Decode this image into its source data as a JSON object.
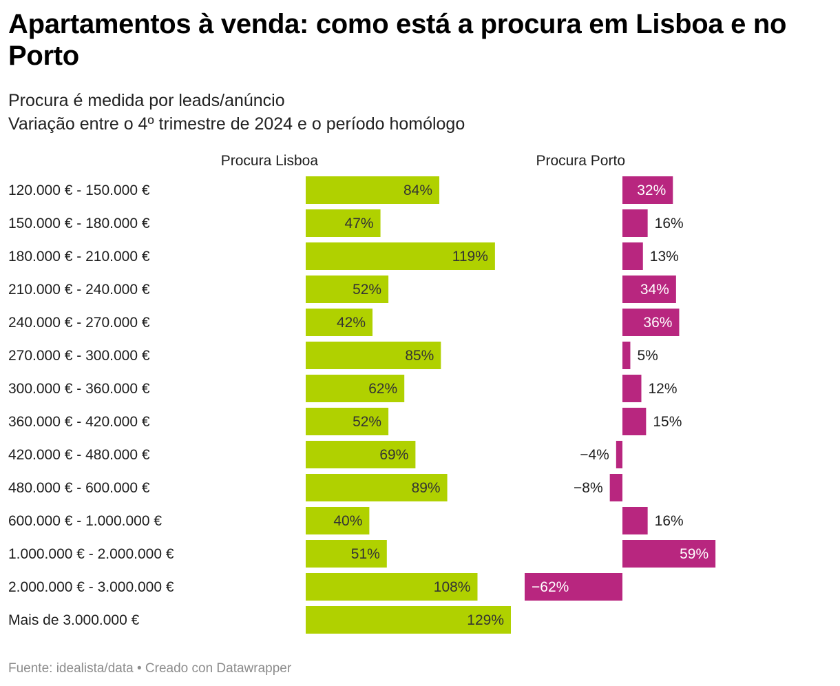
{
  "title": "Apartamentos à venda: como está a procura em Lisboa e no Porto",
  "subtitle_1": "Procura é medida por leads/anúncio",
  "subtitle_2": "Variação entre o 4º trimestre de 2024 e o período homólogo",
  "footer": {
    "source": "Fuente: idealista/data",
    "separator": "•",
    "credit": "Creado con Datawrapper"
  },
  "colors": {
    "lisboa": "#b0d100",
    "porto": "#b8267f",
    "text": "#1d1d1d",
    "label_on_porto": "#ffffff"
  },
  "chart_data": {
    "type": "bar",
    "orientation": "horizontal",
    "unit": "%",
    "categories": [
      "120.000 € - 150.000 €",
      "150.000 € - 180.000 €",
      "180.000 € - 210.000 €",
      "210.000 € - 240.000 €",
      "240.000 € - 270.000 €",
      "270.000 € - 300.000 €",
      "300.000 € - 360.000 €",
      "360.000 € - 420.000 €",
      "420.000 € - 480.000 €",
      "480.000 € - 600.000 €",
      "600.000 € - 1.000.000 €",
      "1.000.000 € - 2.000.000 €",
      "2.000.000 € - 3.000.000 €",
      "Mais de 3.000.000 €"
    ],
    "series": [
      {
        "name": "Procura Lisboa",
        "values": [
          84,
          47,
          119,
          52,
          42,
          85,
          62,
          52,
          69,
          89,
          40,
          51,
          108,
          129
        ],
        "labels": [
          "84%",
          "47%",
          "119%",
          "52%",
          "42%",
          "85%",
          "62%",
          "52%",
          "69%",
          "89%",
          "40%",
          "51%",
          "108%",
          "129%"
        ]
      },
      {
        "name": "Procura Porto",
        "values": [
          32,
          16,
          13,
          34,
          36,
          5,
          12,
          15,
          -4,
          -8,
          16,
          59,
          -62,
          null
        ],
        "labels": [
          "32%",
          "16%",
          "13%",
          "34%",
          "36%",
          "5%",
          "12%",
          "15%",
          "−4%",
          "−8%",
          "16%",
          "59%",
          "−62%",
          ""
        ]
      }
    ]
  }
}
